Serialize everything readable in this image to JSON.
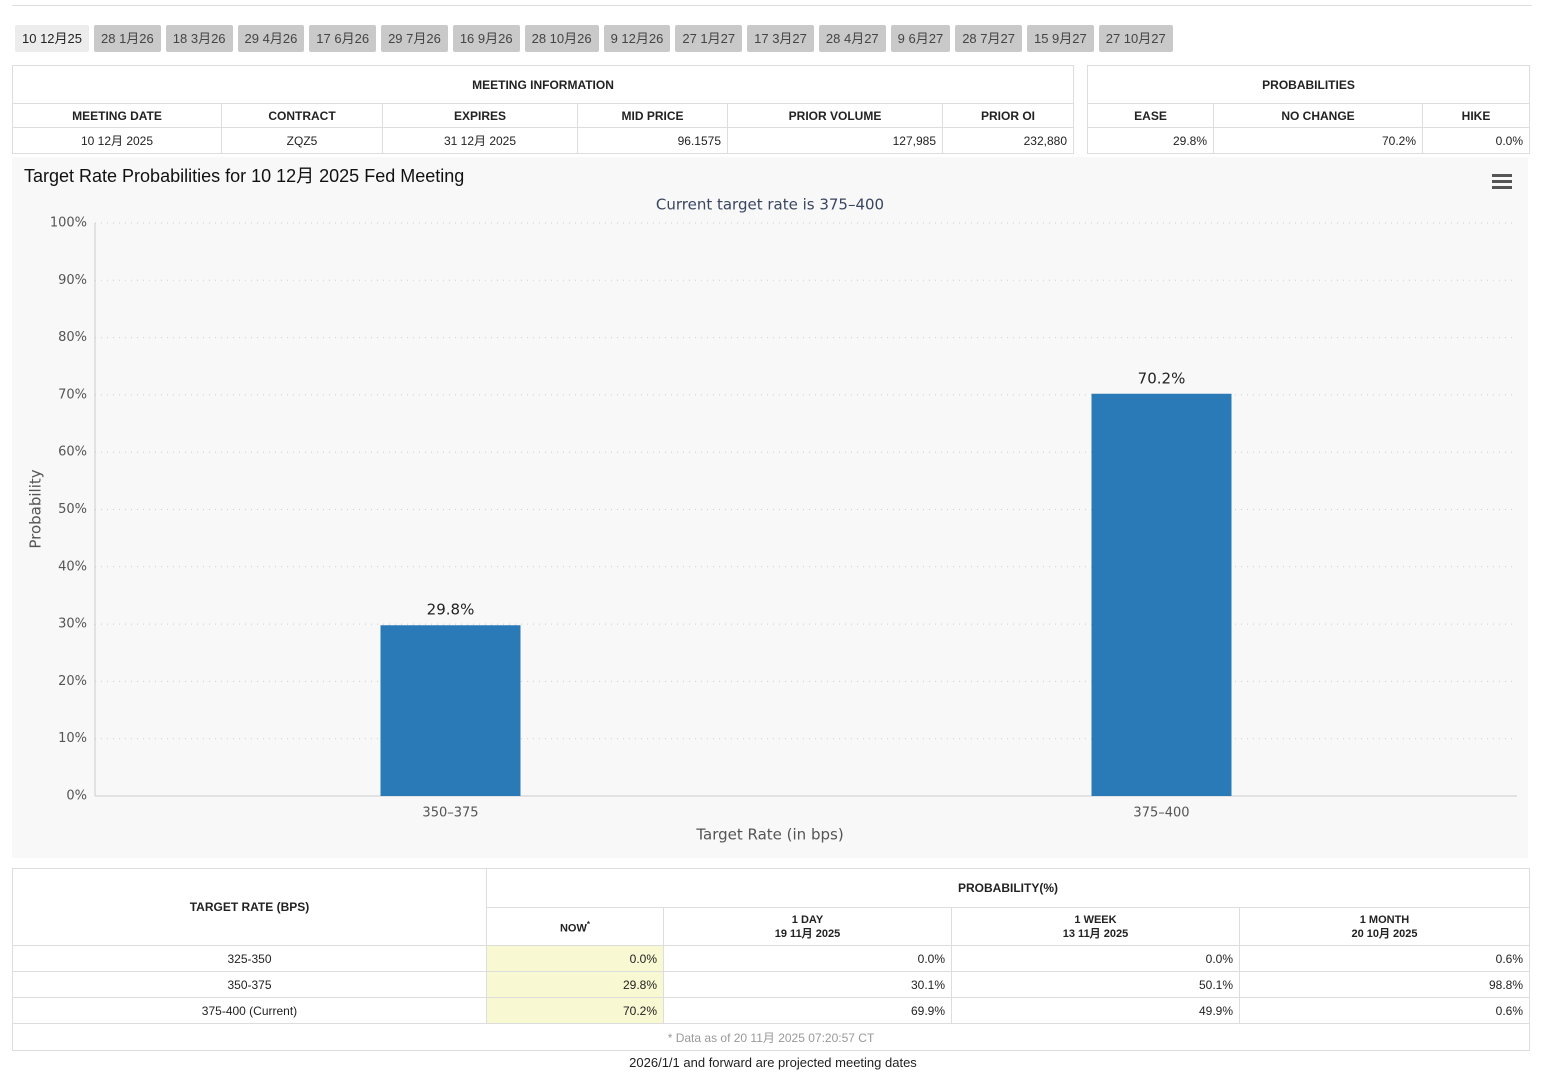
{
  "tabs": [
    "10 12月25",
    "28 1月26",
    "18 3月26",
    "29 4月26",
    "17 6月26",
    "29 7月26",
    "16 9月26",
    "28 10月26",
    "9 12月26",
    "27 1月27",
    "17 3月27",
    "28 4月27",
    "9 6月27",
    "28 7月27",
    "15 9月27",
    "27 10月27"
  ],
  "meeting_info": {
    "title": "MEETING INFORMATION",
    "headers": [
      "MEETING DATE",
      "CONTRACT",
      "EXPIRES",
      "MID PRICE",
      "PRIOR VOLUME",
      "PRIOR OI"
    ],
    "row": [
      "10 12月 2025",
      "ZQZ5",
      "31 12月 2025",
      "96.1575",
      "127,985",
      "232,880"
    ]
  },
  "probabilities": {
    "title": "PROBABILITIES",
    "headers": [
      "EASE",
      "NO CHANGE",
      "HIKE"
    ],
    "row": [
      "29.8%",
      "70.2%",
      "0.0%"
    ]
  },
  "chart_data": {
    "type": "bar",
    "title": "Target Rate Probabilities for 10 12月 2025 Fed Meeting",
    "subtitle": "Current target rate is 375–400",
    "x_label": "Target Rate (in bps)",
    "y_label": "Probability",
    "categories": [
      "350–375",
      "375–400"
    ],
    "values": [
      29.8,
      70.2
    ],
    "value_labels": [
      "29.8%",
      "70.2%"
    ],
    "color": "#2a7ab8",
    "ylim": [
      0,
      100
    ],
    "yticks": [
      {
        "value": 0,
        "label": "0%"
      },
      {
        "value": 10,
        "label": "10%"
      },
      {
        "value": 20,
        "label": "20%"
      },
      {
        "value": 30,
        "label": "30%"
      },
      {
        "value": 40,
        "label": "40%"
      },
      {
        "value": 50,
        "label": "50%"
      },
      {
        "value": 60,
        "label": "60%"
      },
      {
        "value": 70,
        "label": "70%"
      },
      {
        "value": 80,
        "label": "80%"
      },
      {
        "value": 90,
        "label": "90%"
      },
      {
        "value": 100,
        "label": "100%"
      }
    ],
    "grid": true
  },
  "rate_table": {
    "header": "TARGET RATE (BPS)",
    "group_header": "PROBABILITY(%)",
    "columns": [
      {
        "label": "NOW",
        "note": "*"
      },
      {
        "label": "1 DAY",
        "date": "19 11月 2025"
      },
      {
        "label": "1 WEEK",
        "date": "13 11月 2025"
      },
      {
        "label": "1 MONTH",
        "date": "20 10月 2025"
      }
    ],
    "rows": [
      [
        "325-350",
        "0.0%",
        "0.0%",
        "0.0%",
        "0.6%"
      ],
      [
        "350-375",
        "29.8%",
        "30.1%",
        "50.1%",
        "98.8%"
      ],
      [
        "375-400 (Current)",
        "70.2%",
        "69.9%",
        "49.9%",
        "0.6%"
      ]
    ],
    "footnote": "* Data as of 20 11月 2025 07:20:57 CT"
  },
  "footer": "2026/1/1 and forward are projected meeting dates"
}
